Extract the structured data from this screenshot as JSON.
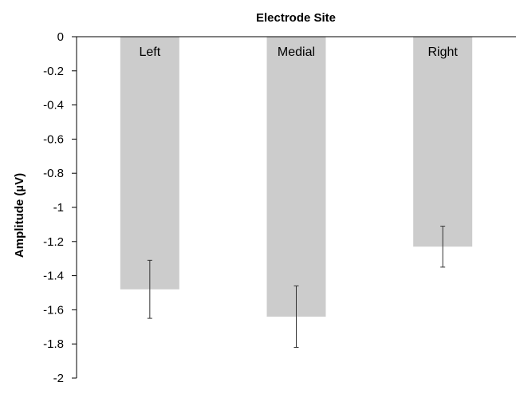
{
  "chart_data": {
    "type": "bar",
    "title": "",
    "xlabel": "Electrode Site",
    "ylabel": "Amplitude (µV)",
    "categories": [
      "Left",
      "Medial",
      "Right"
    ],
    "values": [
      -1.48,
      -1.64,
      -1.23
    ],
    "error_low": [
      -1.65,
      -1.82,
      -1.35
    ],
    "error_high": [
      -1.31,
      -1.46,
      -1.11
    ],
    "ylim": [
      -2,
      0
    ],
    "yticks": [
      0,
      -0.2,
      -0.4,
      -0.6,
      -0.8,
      -1,
      -1.2,
      -1.4,
      -1.6,
      -1.8,
      -2
    ],
    "ytick_labels": [
      "0",
      "-0.2",
      "-0.4",
      "-0.6",
      "-0.8",
      "-1",
      "-1.2",
      "-1.4",
      "-1.6",
      "-1.8",
      "-2"
    ],
    "bar_color": "#cccccc",
    "grid": false,
    "legend": "none"
  }
}
